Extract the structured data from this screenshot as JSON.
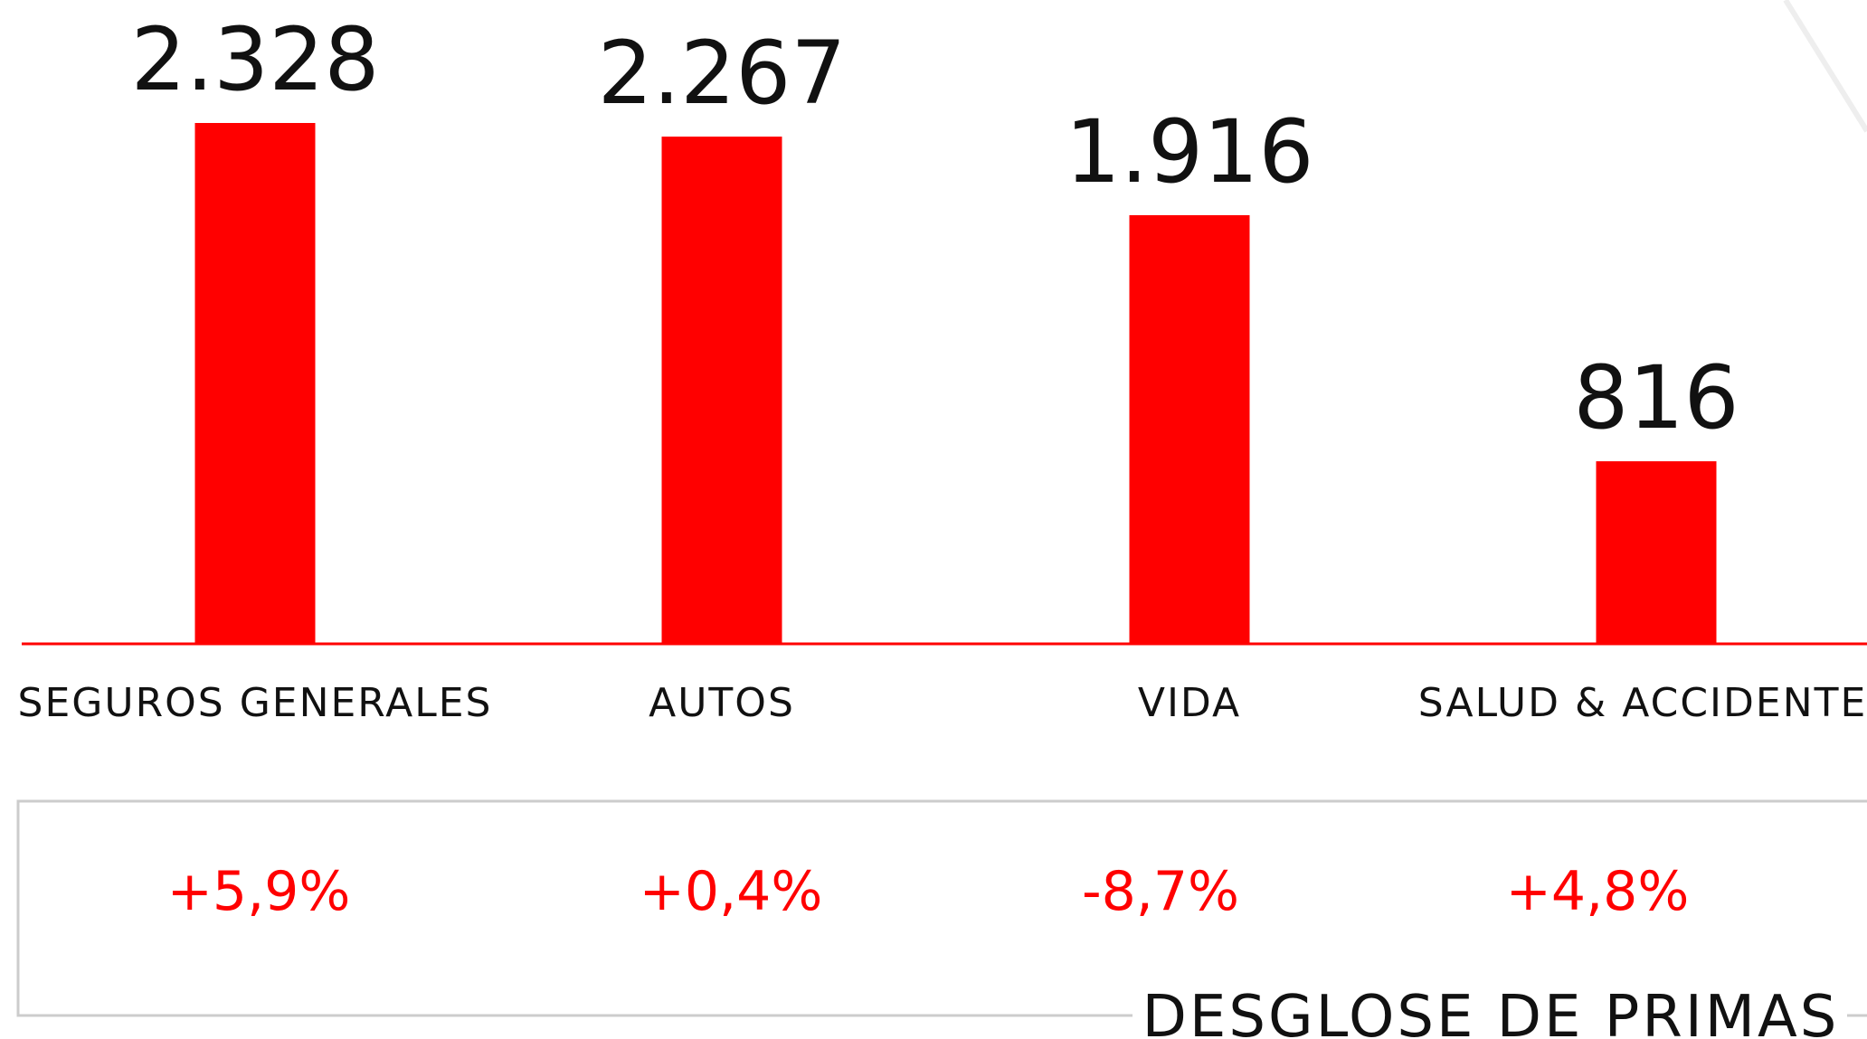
{
  "chart_data": {
    "type": "bar",
    "title": "DESGLOSE DE PRIMAS",
    "categories": [
      "SEGUROS GENERALES",
      "AUTOS",
      "VIDA",
      "SALUD & ACCIDENTES"
    ],
    "values": [
      2328,
      2267,
      1916,
      816
    ],
    "value_labels": [
      "2.328",
      "2.267",
      "1.916",
      "816"
    ],
    "change_labels": [
      "+5,9%",
      "+0,4%",
      "-8,7%",
      "+4,8%"
    ],
    "color": "#ff0000"
  }
}
